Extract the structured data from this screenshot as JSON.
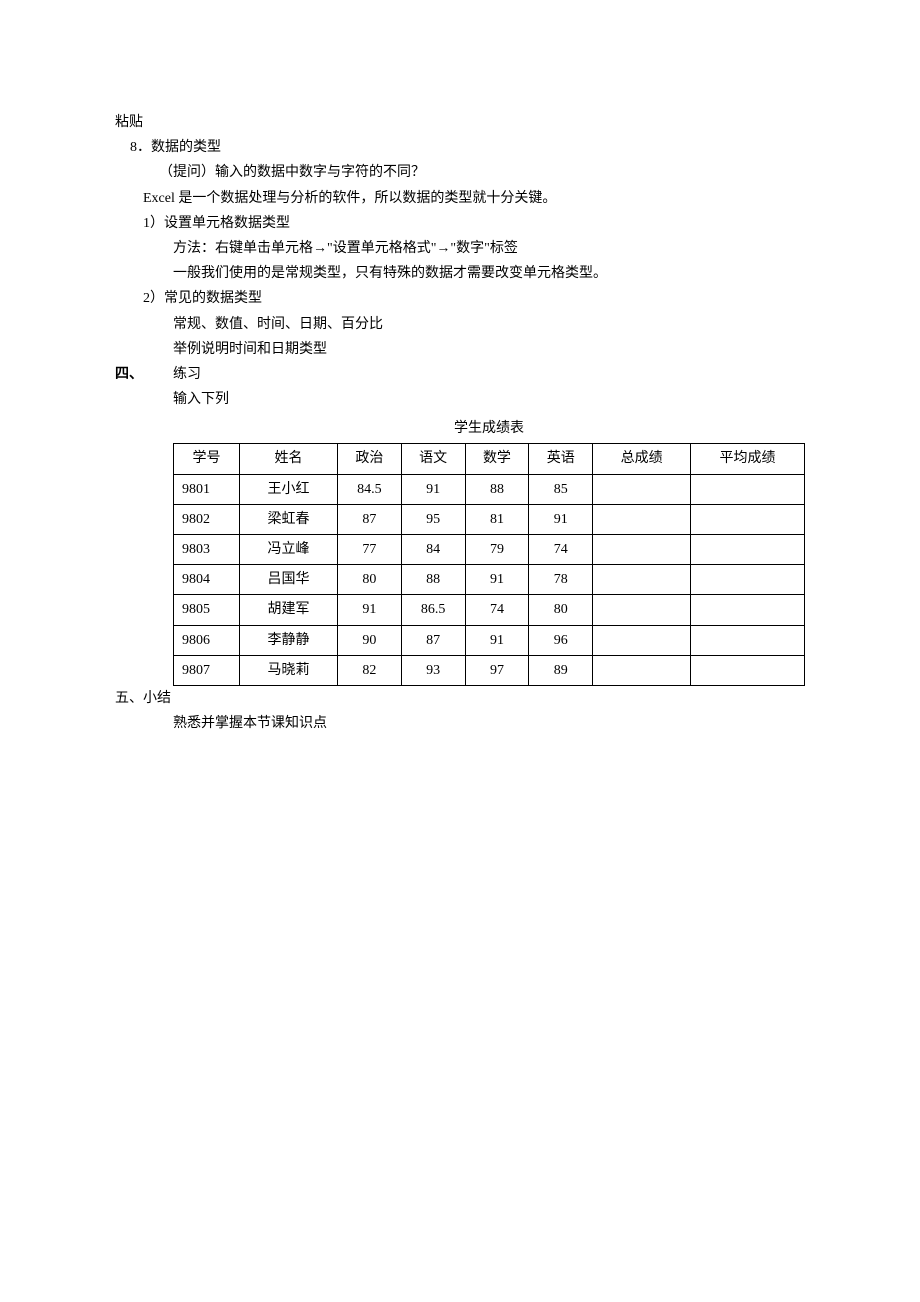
{
  "lines": {
    "paste": "粘贴",
    "item8": "8．数据的类型",
    "item8_q": "（提问）输入的数据中数字与字符的不同？",
    "item8_excel": "Excel 是一个数据处理与分析的软件，所以数据的类型就十分关键。",
    "item8_1": "1）设置单元格数据类型",
    "item8_1_method": "方法：右键单击单元格→\"设置单元格格式\"→\"数字\"标签",
    "item8_1_note": "一般我们使用的是常规类型，只有特殊的数据才需要改变单元格类型。",
    "item8_2": "2）常见的数据类型",
    "item8_2_types": "常规、数值、时间、日期、百分比",
    "item8_2_example": "举例说明时间和日期类型"
  },
  "section4": {
    "num": "四、",
    "label": "练习",
    "content": "输入下列"
  },
  "table": {
    "title": "学生成绩表",
    "columns": [
      "学号",
      "姓名",
      "政治",
      "语文",
      "数学",
      "英语",
      "总成绩",
      "平均成绩"
    ],
    "rows": [
      [
        "9801",
        "王小红",
        "84.5",
        "91",
        "88",
        "85",
        "",
        ""
      ],
      [
        "9802",
        "梁虹春",
        "87",
        "95",
        "81",
        "91",
        "",
        ""
      ],
      [
        "9803",
        "冯立峰",
        "77",
        "84",
        "79",
        "74",
        "",
        ""
      ],
      [
        "9804",
        "吕国华",
        "80",
        "88",
        "91",
        "78",
        "",
        ""
      ],
      [
        "9805",
        "胡建军",
        "91",
        "86.5",
        "74",
        "80",
        "",
        ""
      ],
      [
        "9806",
        "李静静",
        "90",
        "87",
        "91",
        "96",
        "",
        ""
      ],
      [
        "9807",
        "马晓莉",
        "82",
        "93",
        "97",
        "89",
        "",
        ""
      ]
    ]
  },
  "section5": {
    "num": "五、",
    "label": "小结",
    "content": "熟悉并掌握本节课知识点"
  }
}
